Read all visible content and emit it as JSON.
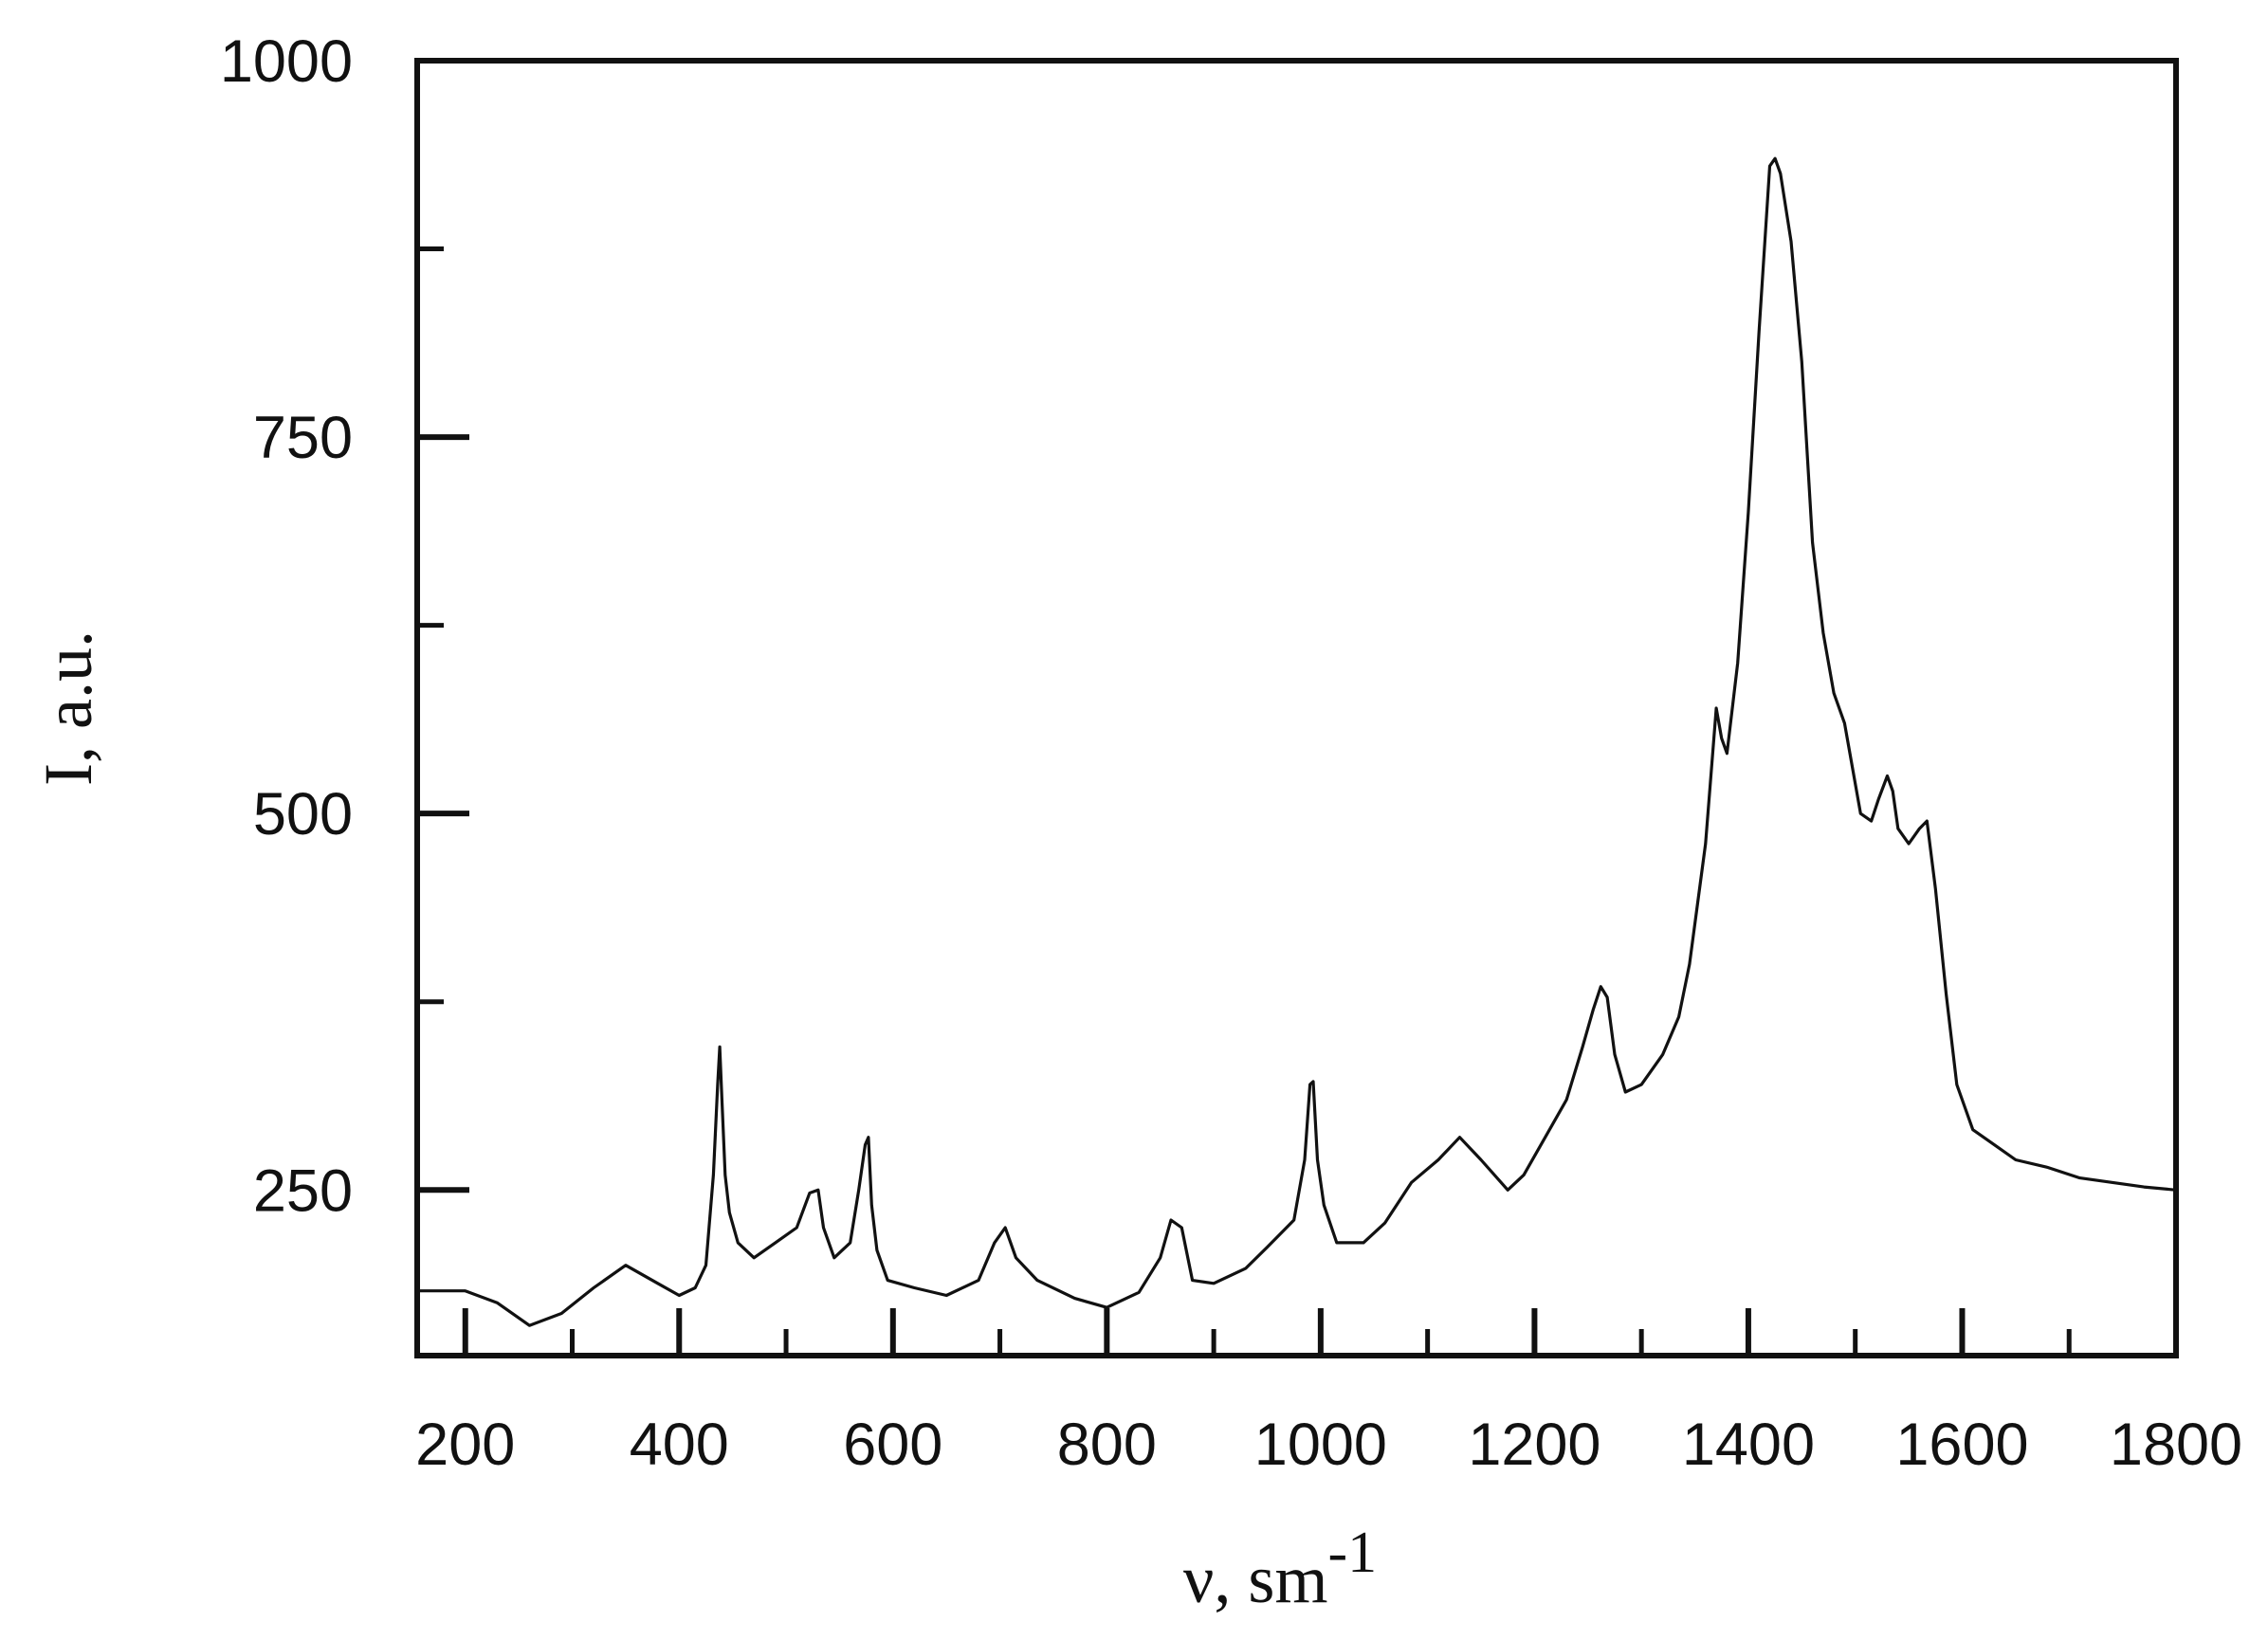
{
  "chart_data": {
    "type": "line",
    "title": "",
    "xlabel": "ν, sm",
    "xlabel_superscript": "-1",
    "ylabel": "I, a.u.",
    "xlim": [
      155,
      1800
    ],
    "ylim": [
      140,
      1000
    ],
    "x_major_ticks": [
      200,
      400,
      600,
      800,
      1000,
      1200,
      1400,
      1600,
      1800
    ],
    "x_minor_ticks": [
      300,
      500,
      700,
      900,
      1100,
      1300,
      1500,
      1700
    ],
    "y_major_ticks": [
      250,
      500,
      750,
      1000
    ],
    "y_minor_ticks": [
      375,
      625,
      875
    ],
    "x_tick_labels": [
      "200",
      "400",
      "600",
      "800",
      "1000",
      "1200",
      "1400",
      "1600",
      "1800"
    ],
    "y_tick_labels": [
      "250",
      "500",
      "750",
      "1000"
    ],
    "grid": false,
    "legend": "none",
    "line_color": "#111111",
    "series": [
      {
        "x": [
          155,
          200,
          230,
          260,
          290,
          320,
          350,
          380,
          400,
          415,
          425,
          432,
          436,
          438,
          440,
          443,
          447,
          455,
          470,
          490,
          510,
          522,
          530,
          535,
          545,
          560,
          568,
          574,
          577,
          580,
          585,
          595,
          620,
          650,
          680,
          695,
          705,
          715,
          735,
          770,
          800,
          830,
          850,
          860,
          870,
          880,
          900,
          930,
          950,
          975,
          985,
          990,
          993,
          997,
          1003,
          1015,
          1040,
          1060,
          1085,
          1110,
          1130,
          1150,
          1175,
          1190,
          1210,
          1230,
          1245,
          1255,
          1262,
          1268,
          1275,
          1285,
          1300,
          1320,
          1335,
          1345,
          1360,
          1370,
          1375,
          1380,
          1390,
          1400,
          1410,
          1420,
          1425,
          1430,
          1440,
          1450,
          1460,
          1470,
          1480,
          1490,
          1505,
          1515,
          1522,
          1530,
          1535,
          1540,
          1550,
          1560,
          1567,
          1575,
          1585,
          1595,
          1610,
          1630,
          1650,
          1680,
          1710,
          1740,
          1770,
          1800
        ],
        "y": [
          183,
          183,
          175,
          160,
          168,
          185,
          200,
          188,
          180,
          185,
          200,
          260,
          320,
          345,
          310,
          260,
          235,
          215,
          205,
          215,
          225,
          248,
          250,
          225,
          205,
          215,
          250,
          280,
          285,
          240,
          210,
          190,
          185,
          180,
          190,
          215,
          225,
          205,
          190,
          178,
          172,
          182,
          205,
          230,
          225,
          190,
          188,
          198,
          212,
          230,
          270,
          320,
          322,
          270,
          240,
          215,
          215,
          228,
          255,
          270,
          285,
          270,
          250,
          260,
          285,
          310,
          345,
          370,
          385,
          378,
          340,
          315,
          320,
          340,
          365,
          400,
          480,
          570,
          550,
          540,
          600,
          700,
          820,
          930,
          935,
          925,
          880,
          800,
          680,
          620,
          580,
          560,
          500,
          495,
          510,
          525,
          515,
          490,
          480,
          490,
          495,
          450,
          380,
          320,
          290,
          280,
          270,
          265,
          258,
          255,
          252,
          250
        ]
      }
    ]
  }
}
